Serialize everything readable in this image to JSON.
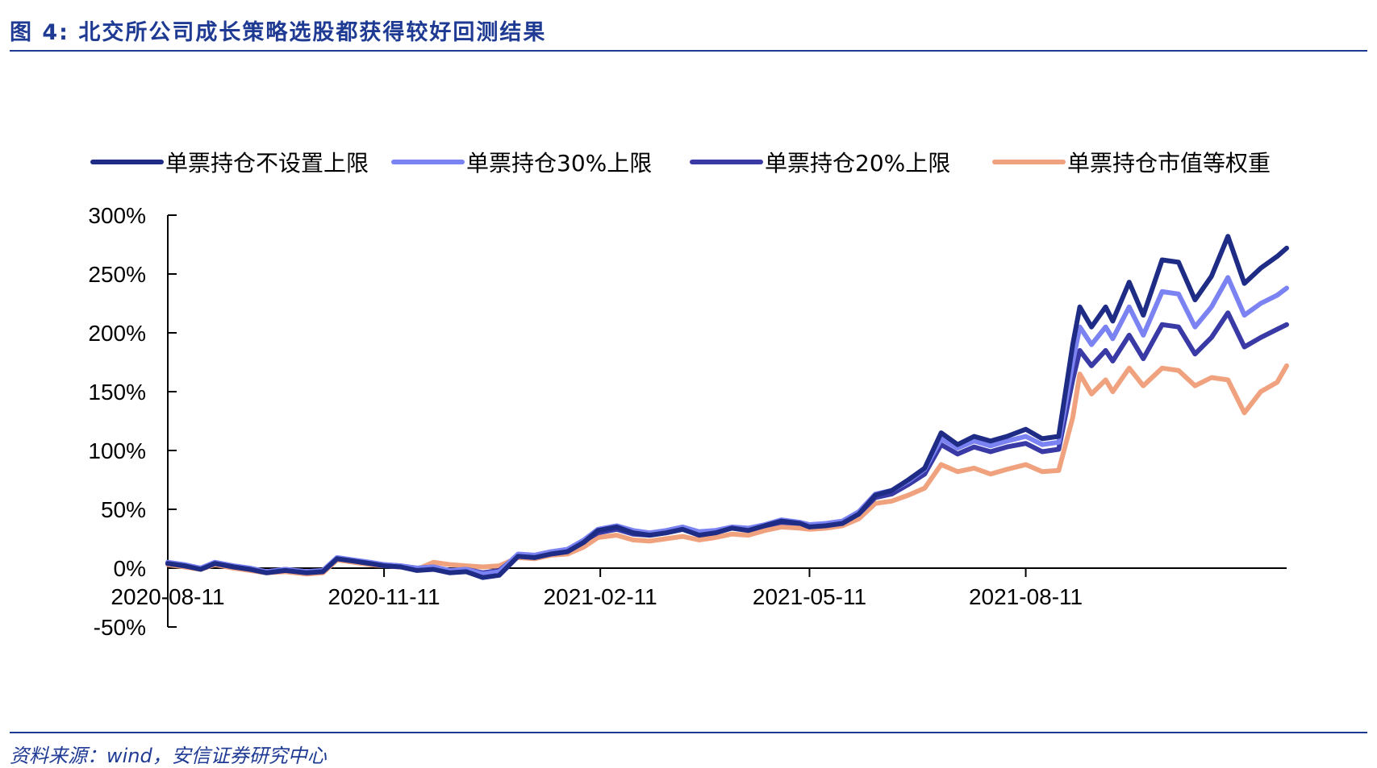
{
  "figure": {
    "title": "图 4:  北交所公司成长策略选股都获得较好回测结果",
    "source": "资料来源：wind，安信证券研究中心"
  },
  "chart_data": {
    "type": "line",
    "ylim": [
      -50,
      300
    ],
    "yticks": [
      -50,
      0,
      50,
      100,
      150,
      200,
      250,
      300
    ],
    "ytick_labels": [
      "-50%",
      "0%",
      "50%",
      "100%",
      "150%",
      "200%",
      "250%",
      "300%"
    ],
    "xlim": [
      "2020-08-11",
      "2021-11-30"
    ],
    "xticks": [
      "2020-08-11",
      "2020-11-11",
      "2021-02-11",
      "2021-05-11",
      "2021-08-11"
    ],
    "xtick_labels": [
      "2020-08-11",
      "2020-11-11",
      "2021-02-11",
      "2021-05-11",
      "2021-08-11"
    ],
    "legend_position": "top",
    "grid": false,
    "series": [
      {
        "name": "单票持仓不设置上限",
        "color": "#1f2c86",
        "points": [
          [
            "2020-08-11",
            4
          ],
          [
            "2020-08-18",
            2
          ],
          [
            "2020-08-25",
            -1
          ],
          [
            "2020-08-31",
            4
          ],
          [
            "2020-09-08",
            1
          ],
          [
            "2020-09-15",
            -1
          ],
          [
            "2020-09-22",
            -4
          ],
          [
            "2020-09-30",
            -2
          ],
          [
            "2020-10-09",
            -4
          ],
          [
            "2020-10-16",
            -3
          ],
          [
            "2020-10-22",
            8
          ],
          [
            "2020-10-29",
            6
          ],
          [
            "2020-11-05",
            4
          ],
          [
            "2020-11-11",
            2
          ],
          [
            "2020-11-18",
            1
          ],
          [
            "2020-11-25",
            -2
          ],
          [
            "2020-12-02",
            -1
          ],
          [
            "2020-12-09",
            -4
          ],
          [
            "2020-12-16",
            -3
          ],
          [
            "2020-12-23",
            -8
          ],
          [
            "2020-12-30",
            -6
          ],
          [
            "2021-01-07",
            10
          ],
          [
            "2021-01-14",
            9
          ],
          [
            "2021-01-21",
            12
          ],
          [
            "2021-01-28",
            14
          ],
          [
            "2021-02-04",
            22
          ],
          [
            "2021-02-10",
            32
          ],
          [
            "2021-02-18",
            35
          ],
          [
            "2021-02-25",
            30
          ],
          [
            "2021-03-04",
            28
          ],
          [
            "2021-03-11",
            30
          ],
          [
            "2021-03-18",
            33
          ],
          [
            "2021-03-25",
            28
          ],
          [
            "2021-04-01",
            30
          ],
          [
            "2021-04-08",
            34
          ],
          [
            "2021-04-15",
            32
          ],
          [
            "2021-04-22",
            36
          ],
          [
            "2021-04-29",
            40
          ],
          [
            "2021-05-07",
            38
          ],
          [
            "2021-05-11",
            35
          ],
          [
            "2021-05-18",
            36
          ],
          [
            "2021-05-25",
            38
          ],
          [
            "2021-06-01",
            46
          ],
          [
            "2021-06-08",
            62
          ],
          [
            "2021-06-15",
            66
          ],
          [
            "2021-06-22",
            75
          ],
          [
            "2021-06-29",
            85
          ],
          [
            "2021-07-06",
            115
          ],
          [
            "2021-07-13",
            105
          ],
          [
            "2021-07-20",
            112
          ],
          [
            "2021-07-27",
            108
          ],
          [
            "2021-08-03",
            112
          ],
          [
            "2021-08-11",
            118
          ],
          [
            "2021-08-18",
            110
          ],
          [
            "2021-08-25",
            112
          ],
          [
            "2021-08-31",
            190
          ],
          [
            "2021-09-03",
            222
          ],
          [
            "2021-09-08",
            205
          ],
          [
            "2021-09-14",
            222
          ],
          [
            "2021-09-17",
            210
          ],
          [
            "2021-09-24",
            243
          ],
          [
            "2021-09-30",
            215
          ],
          [
            "2021-10-08",
            262
          ],
          [
            "2021-10-15",
            260
          ],
          [
            "2021-10-22",
            228
          ],
          [
            "2021-10-29",
            248
          ],
          [
            "2021-11-05",
            282
          ],
          [
            "2021-11-12",
            242
          ],
          [
            "2021-11-19",
            255
          ],
          [
            "2021-11-26",
            265
          ],
          [
            "2021-11-30",
            272
          ]
        ]
      },
      {
        "name": "单票持仓30%上限",
        "color": "#7b82f2",
        "points": [
          [
            "2020-08-11",
            5
          ],
          [
            "2020-08-18",
            3
          ],
          [
            "2020-08-25",
            0
          ],
          [
            "2020-08-31",
            5
          ],
          [
            "2020-09-08",
            2
          ],
          [
            "2020-09-15",
            0
          ],
          [
            "2020-09-22",
            -3
          ],
          [
            "2020-09-30",
            -1
          ],
          [
            "2020-10-09",
            -3
          ],
          [
            "2020-10-16",
            -2
          ],
          [
            "2020-10-22",
            9
          ],
          [
            "2020-10-29",
            7
          ],
          [
            "2020-11-05",
            5
          ],
          [
            "2020-11-11",
            3
          ],
          [
            "2020-11-18",
            2
          ],
          [
            "2020-11-25",
            0
          ],
          [
            "2020-12-02",
            1
          ],
          [
            "2020-12-09",
            -2
          ],
          [
            "2020-12-16",
            -1
          ],
          [
            "2020-12-23",
            -5
          ],
          [
            "2020-12-30",
            -3
          ],
          [
            "2021-01-07",
            12
          ],
          [
            "2021-01-14",
            11
          ],
          [
            "2021-01-21",
            14
          ],
          [
            "2021-01-28",
            16
          ],
          [
            "2021-02-04",
            24
          ],
          [
            "2021-02-10",
            33
          ],
          [
            "2021-02-18",
            36
          ],
          [
            "2021-02-25",
            32
          ],
          [
            "2021-03-04",
            30
          ],
          [
            "2021-03-11",
            32
          ],
          [
            "2021-03-18",
            35
          ],
          [
            "2021-03-25",
            31
          ],
          [
            "2021-04-01",
            32
          ],
          [
            "2021-04-08",
            35
          ],
          [
            "2021-04-15",
            34
          ],
          [
            "2021-04-22",
            37
          ],
          [
            "2021-04-29",
            41
          ],
          [
            "2021-05-07",
            39
          ],
          [
            "2021-05-11",
            37
          ],
          [
            "2021-05-18",
            38
          ],
          [
            "2021-05-25",
            40
          ],
          [
            "2021-06-01",
            48
          ],
          [
            "2021-06-08",
            63
          ],
          [
            "2021-06-15",
            66
          ],
          [
            "2021-06-22",
            74
          ],
          [
            "2021-06-29",
            84
          ],
          [
            "2021-07-06",
            110
          ],
          [
            "2021-07-13",
            102
          ],
          [
            "2021-07-20",
            108
          ],
          [
            "2021-07-27",
            104
          ],
          [
            "2021-08-03",
            108
          ],
          [
            "2021-08-11",
            112
          ],
          [
            "2021-08-18",
            105
          ],
          [
            "2021-08-25",
            107
          ],
          [
            "2021-08-31",
            175
          ],
          [
            "2021-09-03",
            205
          ],
          [
            "2021-09-08",
            190
          ],
          [
            "2021-09-14",
            205
          ],
          [
            "2021-09-17",
            195
          ],
          [
            "2021-09-24",
            222
          ],
          [
            "2021-09-30",
            198
          ],
          [
            "2021-10-08",
            235
          ],
          [
            "2021-10-15",
            233
          ],
          [
            "2021-10-22",
            205
          ],
          [
            "2021-10-29",
            222
          ],
          [
            "2021-11-05",
            247
          ],
          [
            "2021-11-12",
            215
          ],
          [
            "2021-11-19",
            225
          ],
          [
            "2021-11-26",
            232
          ],
          [
            "2021-11-30",
            238
          ]
        ]
      },
      {
        "name": "单票持仓20%上限",
        "color": "#3a3aa6",
        "points": [
          [
            "2020-08-11",
            4
          ],
          [
            "2020-08-18",
            2
          ],
          [
            "2020-08-25",
            0
          ],
          [
            "2020-08-31",
            4
          ],
          [
            "2020-09-08",
            1
          ],
          [
            "2020-09-15",
            0
          ],
          [
            "2020-09-22",
            -3
          ],
          [
            "2020-09-30",
            -1
          ],
          [
            "2020-10-09",
            -3
          ],
          [
            "2020-10-16",
            -2
          ],
          [
            "2020-10-22",
            8
          ],
          [
            "2020-10-29",
            6
          ],
          [
            "2020-11-05",
            4
          ],
          [
            "2020-11-11",
            3
          ],
          [
            "2020-11-18",
            2
          ],
          [
            "2020-11-25",
            0
          ],
          [
            "2020-12-02",
            1
          ],
          [
            "2020-12-09",
            -2
          ],
          [
            "2020-12-16",
            -1
          ],
          [
            "2020-12-23",
            -4
          ],
          [
            "2020-12-30",
            -2
          ],
          [
            "2021-01-07",
            11
          ],
          [
            "2021-01-14",
            10
          ],
          [
            "2021-01-21",
            13
          ],
          [
            "2021-01-28",
            15
          ],
          [
            "2021-02-04",
            23
          ],
          [
            "2021-02-10",
            30
          ],
          [
            "2021-02-18",
            33
          ],
          [
            "2021-02-25",
            29
          ],
          [
            "2021-03-04",
            28
          ],
          [
            "2021-03-11",
            30
          ],
          [
            "2021-03-18",
            33
          ],
          [
            "2021-03-25",
            29
          ],
          [
            "2021-04-01",
            31
          ],
          [
            "2021-04-08",
            34
          ],
          [
            "2021-04-15",
            33
          ],
          [
            "2021-04-22",
            36
          ],
          [
            "2021-04-29",
            39
          ],
          [
            "2021-05-07",
            38
          ],
          [
            "2021-05-11",
            36
          ],
          [
            "2021-05-18",
            37
          ],
          [
            "2021-05-25",
            39
          ],
          [
            "2021-06-01",
            46
          ],
          [
            "2021-06-08",
            60
          ],
          [
            "2021-06-15",
            63
          ],
          [
            "2021-06-22",
            71
          ],
          [
            "2021-06-29",
            80
          ],
          [
            "2021-07-06",
            105
          ],
          [
            "2021-07-13",
            97
          ],
          [
            "2021-07-20",
            103
          ],
          [
            "2021-07-27",
            99
          ],
          [
            "2021-08-03",
            103
          ],
          [
            "2021-08-11",
            106
          ],
          [
            "2021-08-18",
            99
          ],
          [
            "2021-08-25",
            101
          ],
          [
            "2021-08-31",
            160
          ],
          [
            "2021-09-03",
            185
          ],
          [
            "2021-09-08",
            172
          ],
          [
            "2021-09-14",
            185
          ],
          [
            "2021-09-17",
            176
          ],
          [
            "2021-09-24",
            198
          ],
          [
            "2021-09-30",
            178
          ],
          [
            "2021-10-08",
            207
          ],
          [
            "2021-10-15",
            205
          ],
          [
            "2021-10-22",
            182
          ],
          [
            "2021-10-29",
            196
          ],
          [
            "2021-11-05",
            217
          ],
          [
            "2021-11-12",
            188
          ],
          [
            "2021-11-19",
            196
          ],
          [
            "2021-11-26",
            203
          ],
          [
            "2021-11-30",
            207
          ]
        ]
      },
      {
        "name": "单票持仓市值等权重",
        "color": "#f0a27f",
        "points": [
          [
            "2020-08-11",
            3
          ],
          [
            "2020-08-18",
            1
          ],
          [
            "2020-08-25",
            -1
          ],
          [
            "2020-08-31",
            3
          ],
          [
            "2020-09-08",
            0
          ],
          [
            "2020-09-15",
            -2
          ],
          [
            "2020-09-22",
            -4
          ],
          [
            "2020-09-30",
            -3
          ],
          [
            "2020-10-09",
            -5
          ],
          [
            "2020-10-16",
            -4
          ],
          [
            "2020-10-22",
            7
          ],
          [
            "2020-10-29",
            5
          ],
          [
            "2020-11-05",
            3
          ],
          [
            "2020-11-11",
            2
          ],
          [
            "2020-11-18",
            1
          ],
          [
            "2020-11-25",
            -1
          ],
          [
            "2020-12-02",
            5
          ],
          [
            "2020-12-09",
            3
          ],
          [
            "2020-12-16",
            2
          ],
          [
            "2020-12-23",
            1
          ],
          [
            "2020-12-30",
            2
          ],
          [
            "2021-01-07",
            9
          ],
          [
            "2021-01-14",
            8
          ],
          [
            "2021-01-21",
            11
          ],
          [
            "2021-01-28",
            12
          ],
          [
            "2021-02-04",
            18
          ],
          [
            "2021-02-10",
            26
          ],
          [
            "2021-02-18",
            28
          ],
          [
            "2021-02-25",
            24
          ],
          [
            "2021-03-04",
            23
          ],
          [
            "2021-03-11",
            25
          ],
          [
            "2021-03-18",
            27
          ],
          [
            "2021-03-25",
            24
          ],
          [
            "2021-04-01",
            26
          ],
          [
            "2021-04-08",
            29
          ],
          [
            "2021-04-15",
            28
          ],
          [
            "2021-04-22",
            32
          ],
          [
            "2021-04-29",
            35
          ],
          [
            "2021-05-07",
            34
          ],
          [
            "2021-05-11",
            33
          ],
          [
            "2021-05-18",
            34
          ],
          [
            "2021-05-25",
            36
          ],
          [
            "2021-06-01",
            42
          ],
          [
            "2021-06-08",
            55
          ],
          [
            "2021-06-15",
            57
          ],
          [
            "2021-06-22",
            62
          ],
          [
            "2021-06-29",
            68
          ],
          [
            "2021-07-06",
            88
          ],
          [
            "2021-07-13",
            82
          ],
          [
            "2021-07-20",
            85
          ],
          [
            "2021-07-27",
            80
          ],
          [
            "2021-08-03",
            84
          ],
          [
            "2021-08-11",
            88
          ],
          [
            "2021-08-18",
            82
          ],
          [
            "2021-08-25",
            83
          ],
          [
            "2021-08-31",
            128
          ],
          [
            "2021-09-03",
            165
          ],
          [
            "2021-09-08",
            148
          ],
          [
            "2021-09-14",
            160
          ],
          [
            "2021-09-17",
            150
          ],
          [
            "2021-09-24",
            170
          ],
          [
            "2021-09-30",
            155
          ],
          [
            "2021-10-08",
            170
          ],
          [
            "2021-10-15",
            168
          ],
          [
            "2021-10-22",
            155
          ],
          [
            "2021-10-29",
            162
          ],
          [
            "2021-11-05",
            160
          ],
          [
            "2021-11-12",
            132
          ],
          [
            "2021-11-19",
            150
          ],
          [
            "2021-11-26",
            158
          ],
          [
            "2021-11-30",
            172
          ]
        ]
      }
    ]
  }
}
